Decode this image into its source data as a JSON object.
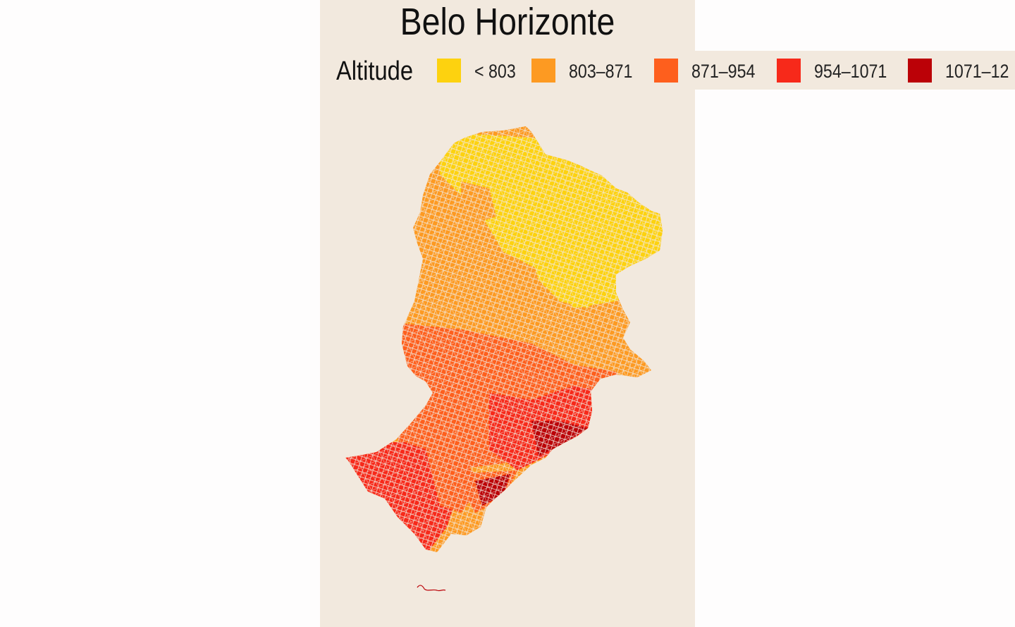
{
  "title": "Belo Horizonte",
  "legend": {
    "title": "Altitude",
    "items": [
      {
        "label": "< 803",
        "color": "#fdd20f"
      },
      {
        "label": "803–871",
        "color": "#fd9a22"
      },
      {
        "label": "871–954",
        "color": "#fe5f1d"
      },
      {
        "label": "954–1071",
        "color": "#f7291a"
      },
      {
        "label": "1071–12",
        "color": "#bb0107"
      }
    ]
  },
  "colors": {
    "panel_background": "#f2e9de",
    "page_background": "#fefdfd"
  }
}
